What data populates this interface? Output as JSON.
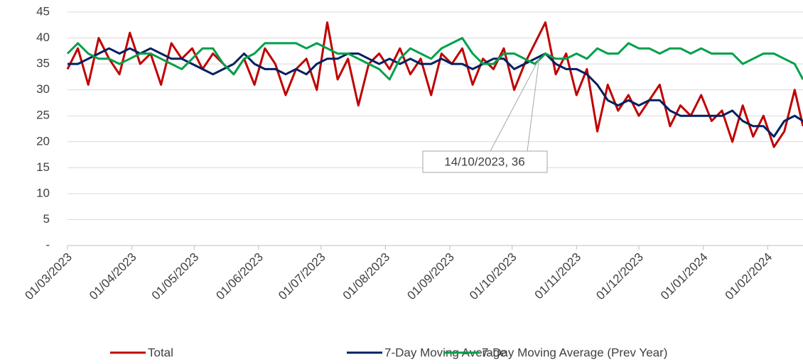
{
  "chart_data": {
    "type": "line",
    "x": [
      "01/03/2023",
      "06/03/2023",
      "11/03/2023",
      "16/03/2023",
      "21/03/2023",
      "26/03/2023",
      "31/03/2023",
      "05/04/2023",
      "10/04/2023",
      "15/04/2023",
      "20/04/2023",
      "25/04/2023",
      "30/04/2023",
      "05/05/2023",
      "10/05/2023",
      "15/05/2023",
      "20/05/2023",
      "25/05/2023",
      "30/05/2023",
      "04/06/2023",
      "09/06/2023",
      "14/06/2023",
      "19/06/2023",
      "24/06/2023",
      "29/06/2023",
      "04/07/2023",
      "09/07/2023",
      "14/07/2023",
      "19/07/2023",
      "24/07/2023",
      "29/07/2023",
      "03/08/2023",
      "08/08/2023",
      "13/08/2023",
      "18/08/2023",
      "23/08/2023",
      "28/08/2023",
      "02/09/2023",
      "07/09/2023",
      "12/09/2023",
      "17/09/2023",
      "22/09/2023",
      "27/09/2023",
      "02/10/2023",
      "07/10/2023",
      "12/10/2023",
      "17/10/2023",
      "22/10/2023",
      "27/10/2023",
      "01/11/2023",
      "06/11/2023",
      "11/11/2023",
      "16/11/2023",
      "21/11/2023",
      "26/11/2023",
      "01/12/2023",
      "06/12/2023",
      "11/12/2023",
      "16/12/2023",
      "21/12/2023",
      "26/12/2023",
      "31/12/2023",
      "05/01/2024",
      "10/01/2024",
      "15/01/2024",
      "20/01/2024",
      "25/01/2024",
      "30/01/2024",
      "04/02/2024",
      "09/02/2024",
      "14/02/2024",
      "18/02/2024"
    ],
    "series": [
      {
        "name": "Total",
        "color": "#c00000",
        "values": [
          34,
          38,
          31,
          40,
          36,
          33,
          41,
          35,
          37,
          31,
          39,
          36,
          38,
          34,
          37,
          35,
          33,
          36,
          31,
          38,
          35,
          29,
          34,
          36,
          30,
          43,
          32,
          36,
          27,
          35,
          37,
          34,
          38,
          33,
          36,
          29,
          37,
          35,
          38,
          31,
          36,
          34,
          38,
          30,
          35,
          39,
          43,
          33,
          37,
          29,
          34,
          22,
          31,
          26,
          29,
          25,
          28,
          31,
          23,
          27,
          25,
          29,
          24,
          26,
          20,
          27,
          21,
          25,
          19,
          22,
          30,
          23
        ]
      },
      {
        "name": "7-Day Moving Average",
        "color": "#002060",
        "values": [
          35,
          35,
          36,
          37,
          38,
          37,
          38,
          37,
          38,
          37,
          36,
          36,
          35,
          34,
          33,
          34,
          35,
          37,
          35,
          34,
          34,
          33,
          34,
          33,
          35,
          36,
          36,
          37,
          37,
          36,
          35,
          36,
          35,
          36,
          35,
          35,
          36,
          35,
          35,
          34,
          35,
          36,
          36,
          34,
          35,
          36,
          37,
          35,
          34,
          34,
          33,
          31,
          28,
          27,
          28,
          27,
          28,
          28,
          26,
          25,
          25,
          25,
          25,
          25,
          26,
          24,
          23,
          23,
          21,
          24,
          25,
          24
        ]
      },
      {
        "name": "7-Day Moving Average (Prev Year)",
        "color": "#00a04a",
        "values": [
          37,
          39,
          37,
          36,
          36,
          35,
          36,
          37,
          37,
          36,
          35,
          34,
          36,
          38,
          38,
          35,
          33,
          36,
          37,
          39,
          39,
          39,
          39,
          38,
          39,
          38,
          37,
          37,
          36,
          35,
          34,
          32,
          36,
          38,
          37,
          36,
          38,
          39,
          40,
          37,
          35,
          35,
          37,
          37,
          36,
          35,
          37,
          36,
          36,
          37,
          36,
          38,
          37,
          37,
          39,
          38,
          38,
          37,
          38,
          38,
          37,
          38,
          37,
          37,
          37,
          35,
          36,
          37,
          37,
          36,
          35,
          32
        ]
      }
    ],
    "xlim": [
      "01/03/2023",
      "18/02/2024"
    ],
    "xticks": [
      "01/03/2023",
      "01/04/2023",
      "01/05/2023",
      "01/06/2023",
      "01/07/2023",
      "01/08/2023",
      "01/09/2023",
      "01/10/2023",
      "01/11/2023",
      "01/12/2023",
      "01/01/2024",
      "01/02/2024"
    ],
    "ylim": [
      0,
      45
    ],
    "yticks": [
      {
        "value": 0,
        "label": "-"
      },
      5,
      10,
      15,
      20,
      25,
      30,
      35,
      40,
      45
    ],
    "grid": true,
    "legend": "bottom",
    "annotation": {
      "x": "14/10/2023",
      "y": 36,
      "label": "14/10/2023,  36"
    }
  }
}
